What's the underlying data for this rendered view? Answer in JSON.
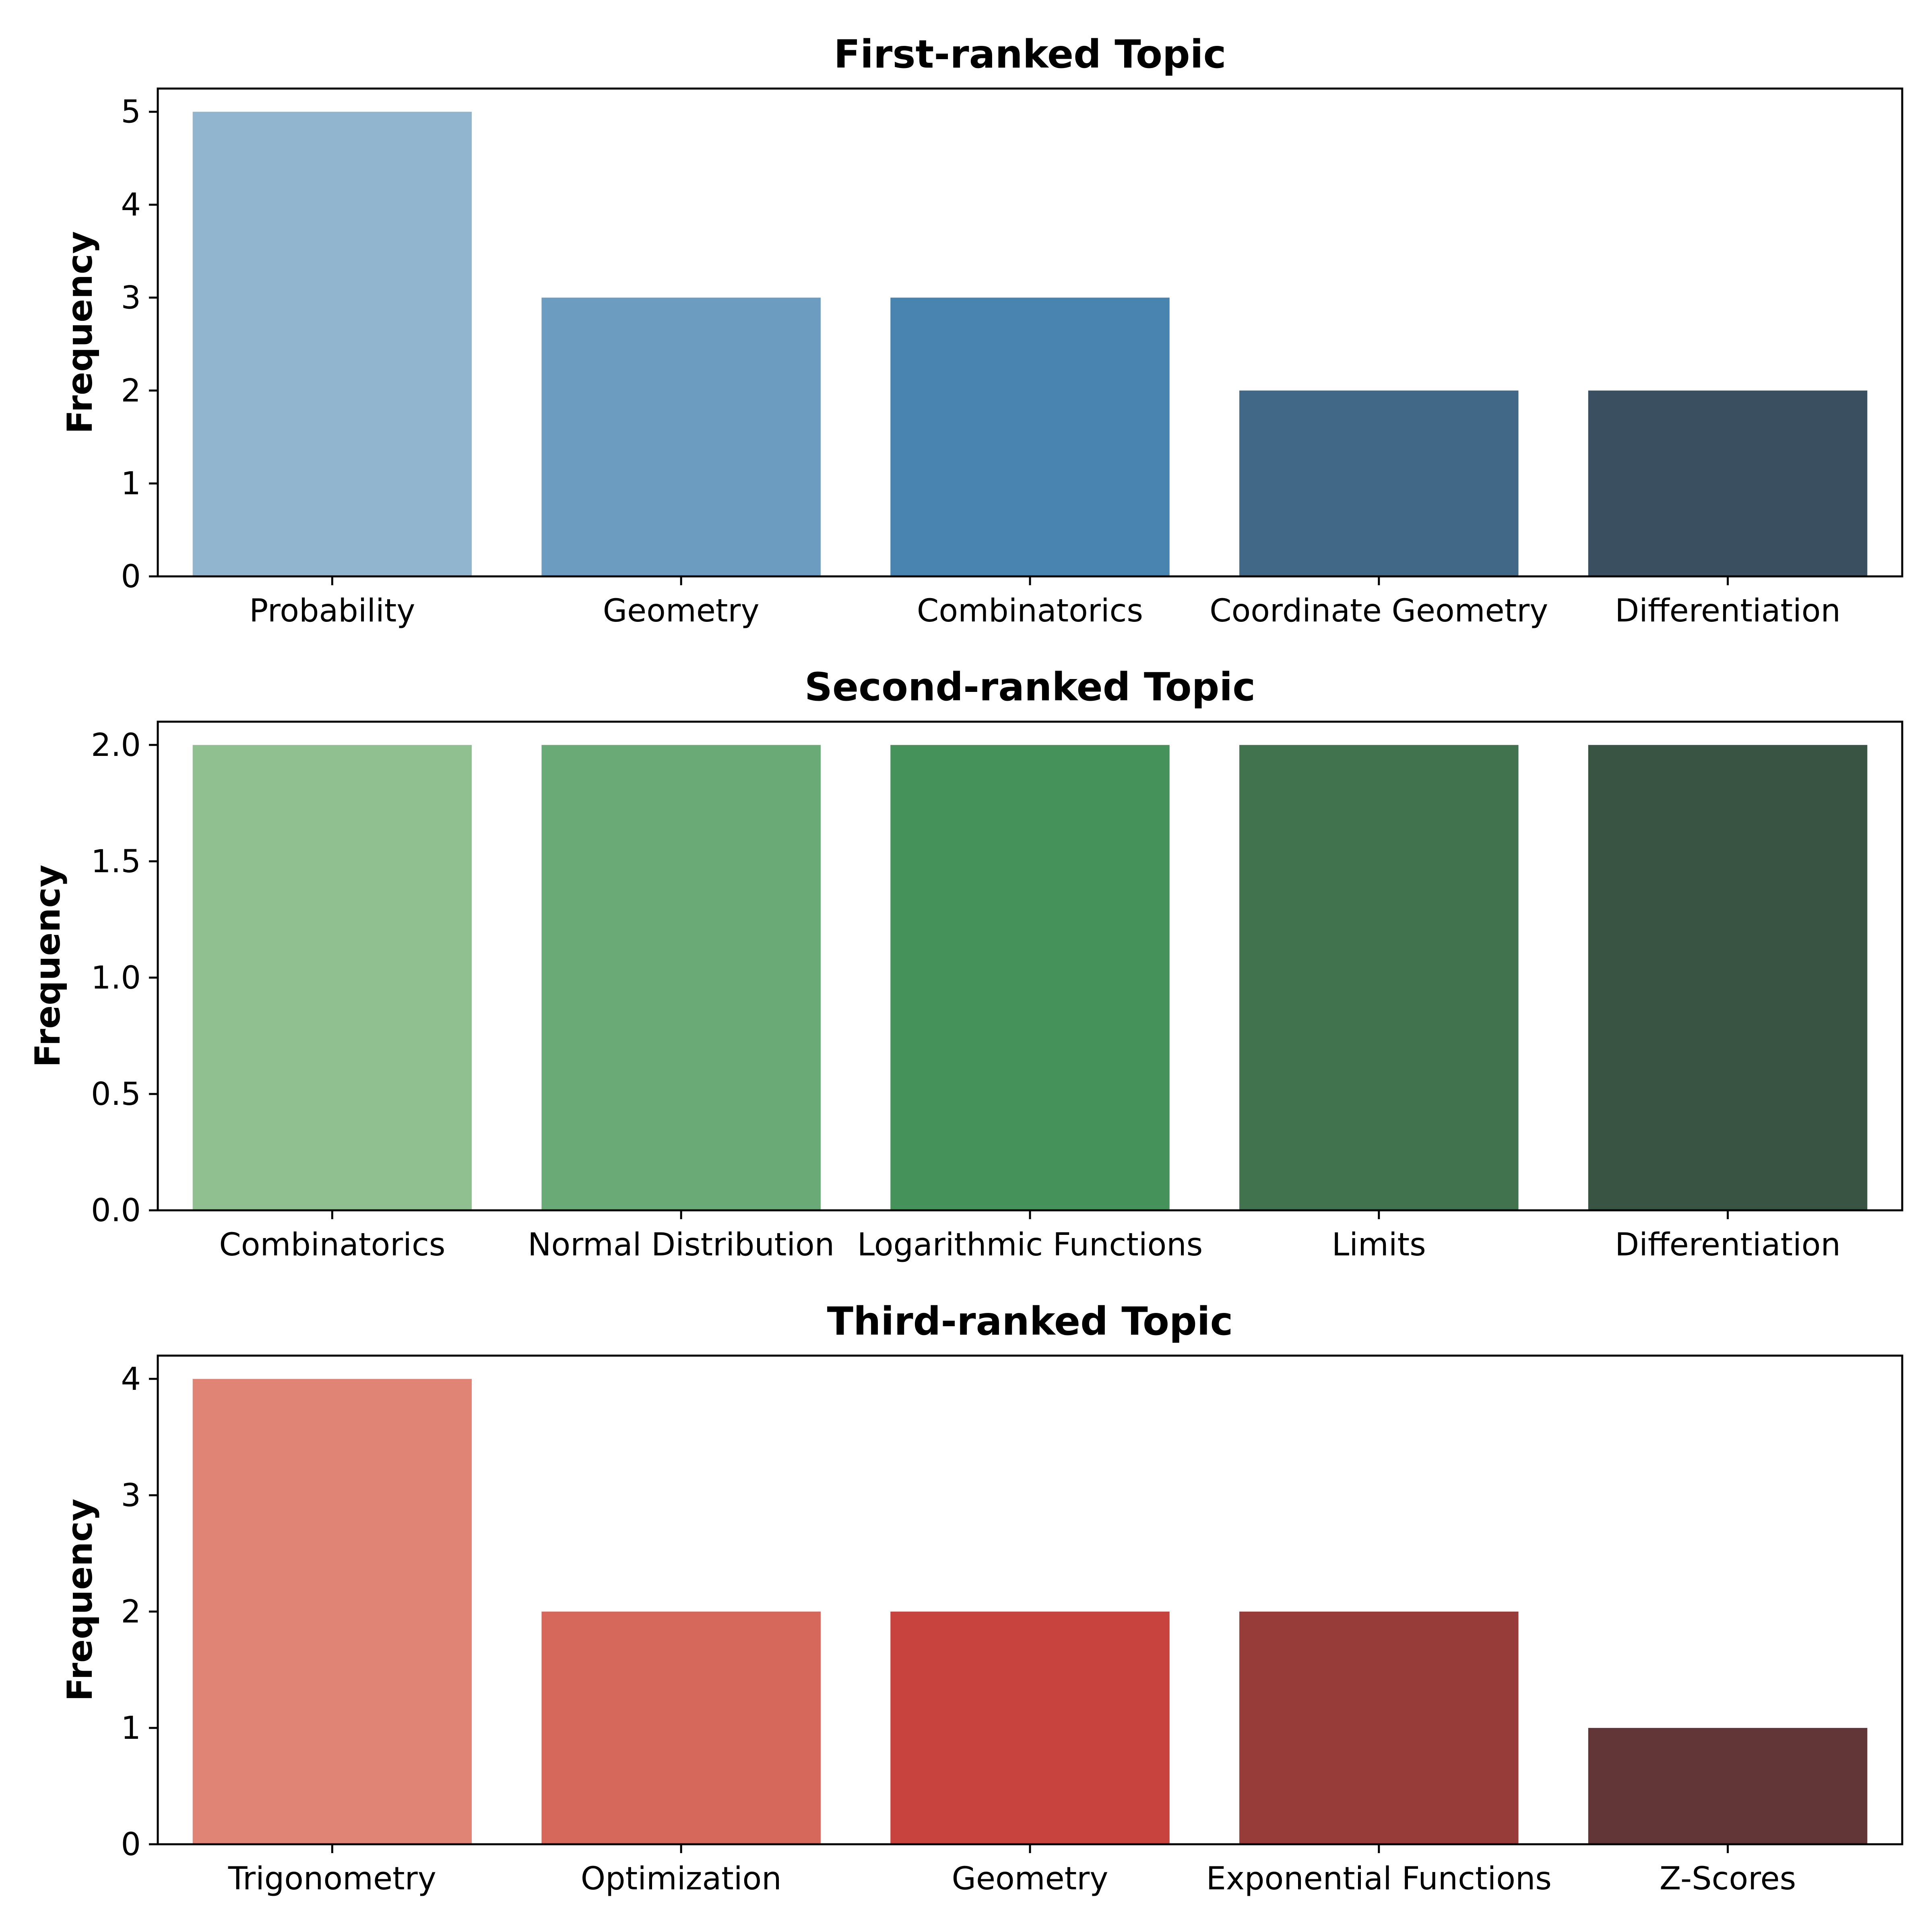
{
  "chart_data": [
    {
      "type": "bar",
      "title": "First-ranked Topic",
      "xlabel": "",
      "ylabel": "Frequency",
      "categories": [
        "Probability",
        "Geometry",
        "Combinatorics",
        "Coordinate Geometry",
        "Differentiation"
      ],
      "values": [
        5,
        3,
        3,
        2,
        2
      ],
      "colors": [
        "#92b5cf",
        "#6c9dc0",
        "#4983b0",
        "#426887",
        "#3a4f5f"
      ],
      "ylim": [
        0,
        5.25
      ],
      "yticks": [
        0,
        1,
        2,
        3,
        4,
        5
      ],
      "ytick_labels": [
        "0",
        "1",
        "2",
        "3",
        "4",
        "5"
      ],
      "grid": false
    },
    {
      "type": "bar",
      "title": "Second-ranked Topic",
      "xlabel": "",
      "ylabel": "Frequency",
      "categories": [
        "Combinatorics",
        "Normal Distribution",
        "Logarithmic Functions",
        "Limits",
        "Differentiation"
      ],
      "values": [
        2,
        2,
        2,
        2,
        2
      ],
      "colors": [
        "#90c090",
        "#6aaa76",
        "#45925b",
        "#41734f",
        "#3a5443"
      ],
      "ylim": [
        0,
        2.1
      ],
      "yticks": [
        0,
        0.5,
        1.0,
        1.5,
        2.0
      ],
      "ytick_labels": [
        "0.0",
        "0.5",
        "1.0",
        "1.5",
        "2.0"
      ],
      "grid": false
    },
    {
      "type": "bar",
      "title": "Third-ranked Topic",
      "xlabel": "",
      "ylabel": "Frequency",
      "categories": [
        "Trigonometry",
        "Optimization",
        "Geometry",
        "Exponential Functions",
        "Z-Scores"
      ],
      "values": [
        4,
        2,
        2,
        2,
        1
      ],
      "colors": [
        "#e08575",
        "#d6675b",
        "#c9433e",
        "#973c39",
        "#623637"
      ],
      "ylim": [
        0,
        4.2
      ],
      "yticks": [
        0,
        1,
        2,
        3,
        4
      ],
      "ytick_labels": [
        "0",
        "1",
        "2",
        "3",
        "4"
      ],
      "grid": false
    }
  ]
}
